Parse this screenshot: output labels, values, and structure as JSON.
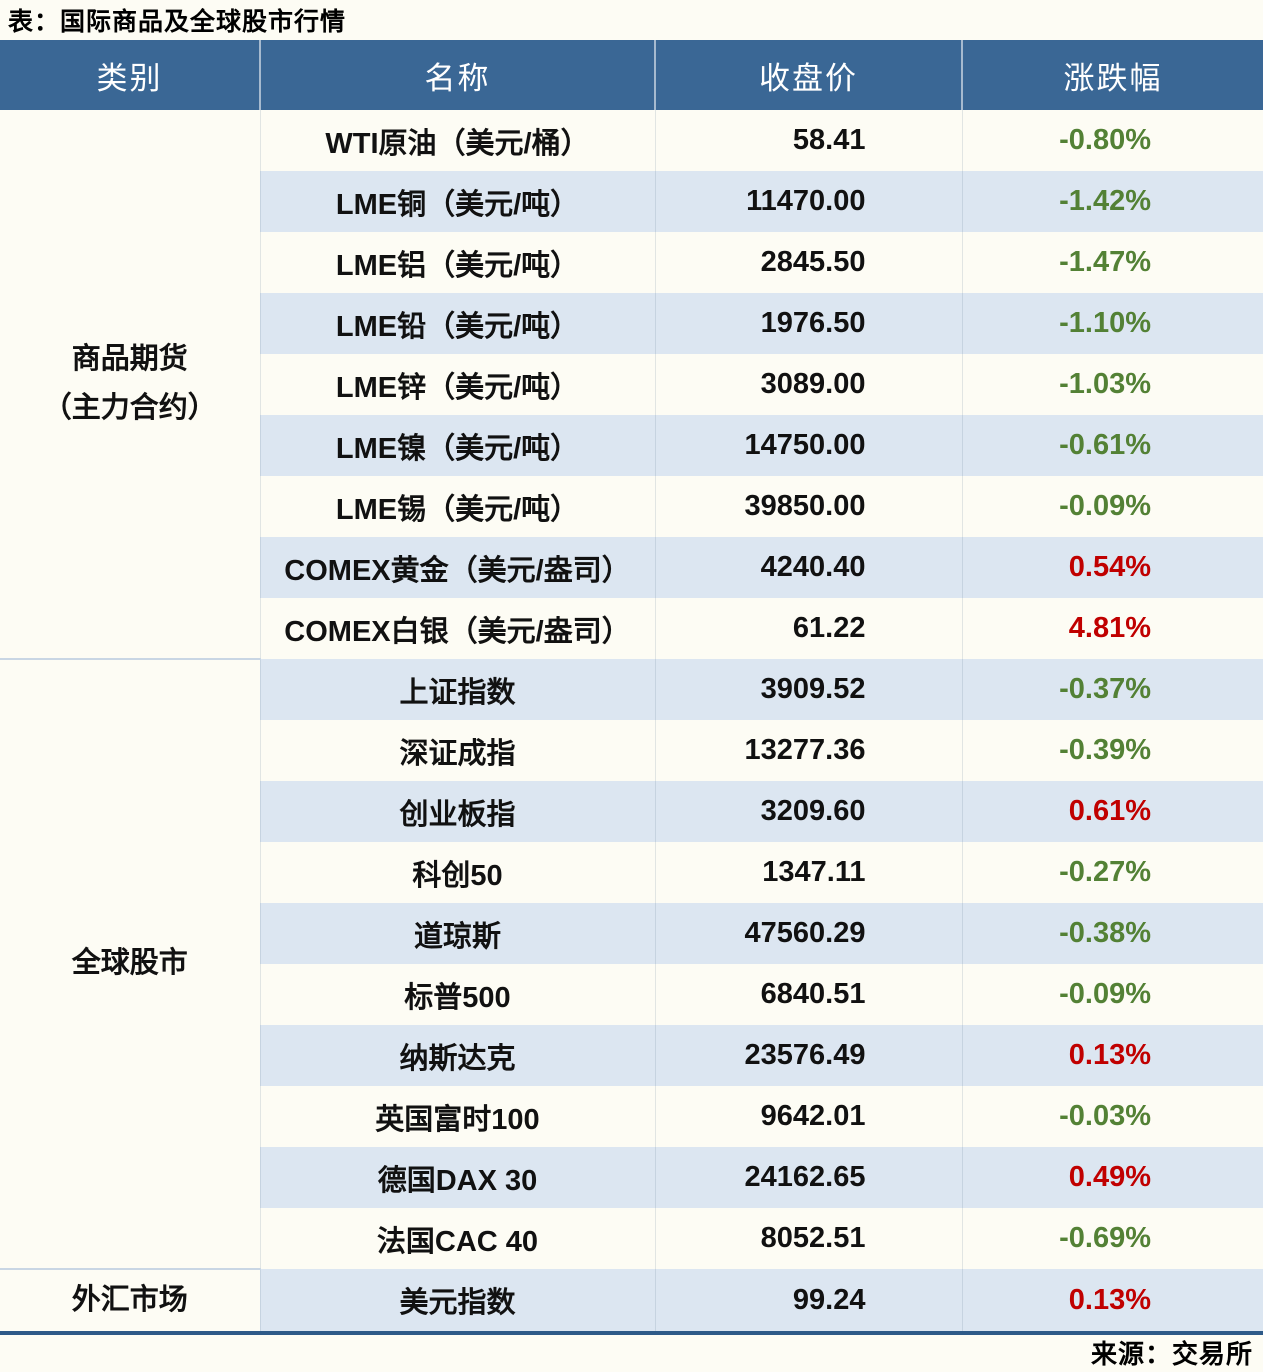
{
  "title": "表：国际商品及全球股市行情",
  "source": "来源：交易所",
  "colors": {
    "header_bg": "#3A6795",
    "stripe": "#DCE6F1",
    "up_red": "#C00000",
    "down_green": "#538135",
    "bottom_border": "#2E5A88"
  },
  "table": {
    "headers": [
      "类别",
      "名称",
      "收盘价",
      "涨跌幅"
    ],
    "groups": [
      {
        "category": "商品期货\n（主力合约）",
        "rows": [
          {
            "name": "WTI原油（美元/桶）",
            "close": "58.41",
            "change": "-0.80%"
          },
          {
            "name": "LME铜（美元/吨）",
            "close": "11470.00",
            "change": "-1.42%"
          },
          {
            "name": "LME铝（美元/吨）",
            "close": "2845.50",
            "change": "-1.47%"
          },
          {
            "name": "LME铅（美元/吨）",
            "close": "1976.50",
            "change": "-1.10%"
          },
          {
            "name": "LME锌（美元/吨）",
            "close": "3089.00",
            "change": "-1.03%"
          },
          {
            "name": "LME镍（美元/吨）",
            "close": "14750.00",
            "change": "-0.61%"
          },
          {
            "name": "LME锡（美元/吨）",
            "close": "39850.00",
            "change": "-0.09%"
          },
          {
            "name": "COMEX黄金（美元/盎司）",
            "close": "4240.40",
            "change": "0.54%"
          },
          {
            "name": "COMEX白银（美元/盎司）",
            "close": "61.22",
            "change": "4.81%"
          }
        ]
      },
      {
        "category": "全球股市",
        "rows": [
          {
            "name": "上证指数",
            "close": "3909.52",
            "change": "-0.37%"
          },
          {
            "name": "深证成指",
            "close": "13277.36",
            "change": "-0.39%"
          },
          {
            "name": "创业板指",
            "close": "3209.60",
            "change": "0.61%"
          },
          {
            "name": "科创50",
            "close": "1347.11",
            "change": "-0.27%"
          },
          {
            "name": "道琼斯",
            "close": "47560.29",
            "change": "-0.38%"
          },
          {
            "name": "标普500",
            "close": "6840.51",
            "change": "-0.09%"
          },
          {
            "name": "纳斯达克",
            "close": "23576.49",
            "change": "0.13%"
          },
          {
            "name": "英国富时100",
            "close": "9642.01",
            "change": "-0.03%"
          },
          {
            "name": "德国DAX 30",
            "close": "24162.65",
            "change": "0.49%"
          },
          {
            "name": "法国CAC 40",
            "close": "8052.51",
            "change": "-0.69%"
          }
        ]
      },
      {
        "category": "外汇市场",
        "rows": [
          {
            "name": "美元指数",
            "close": "99.24",
            "change": "0.13%"
          }
        ]
      }
    ]
  }
}
